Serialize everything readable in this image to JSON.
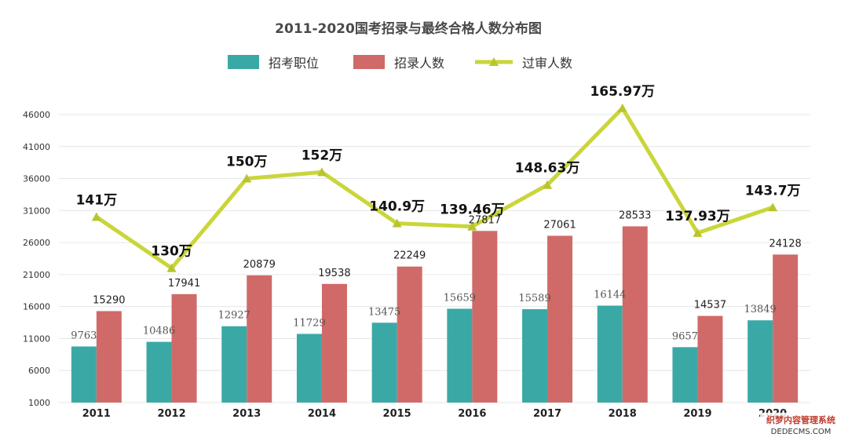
{
  "chart_data": {
    "type": "bar",
    "title": "2011-2020国考招录与最终合格人数分布图",
    "categories": [
      "2011",
      "2012",
      "2013",
      "2014",
      "2015",
      "2016",
      "2017",
      "2018",
      "2019",
      "2020"
    ],
    "series": [
      {
        "name": "招考职位",
        "type": "bar",
        "color": "#3aa9a6",
        "values": [
          9763,
          10486,
          12927,
          11729,
          13475,
          15659,
          15589,
          16144,
          9657,
          13849
        ]
      },
      {
        "name": "招录人数",
        "type": "bar",
        "color": "#d06a68",
        "values": [
          15290,
          17941,
          20879,
          19538,
          22249,
          27817,
          27061,
          28533,
          14537,
          24128
        ]
      },
      {
        "name": "过审人数",
        "type": "line",
        "color": "#c9d63a",
        "marker": "triangle",
        "values": [
          30000,
          22000,
          36000,
          37000,
          29000,
          28500,
          35000,
          47000,
          27500,
          31500
        ],
        "labels": [
          "141万",
          "130万",
          "150万",
          "152万",
          "140.9万",
          "139.46万",
          "148.63万",
          "165.97万",
          "137.93万",
          "143.7万"
        ]
      }
    ],
    "ylim": [
      1000,
      46000
    ],
    "yticks": [
      1000,
      6000,
      11000,
      16000,
      21000,
      26000,
      31000,
      36000,
      41000,
      46000
    ],
    "grid": true,
    "legend_position": "top-center",
    "watermark": {
      "line1": "织梦内容管理系统",
      "line2": "DEDECMS.COM"
    }
  }
}
